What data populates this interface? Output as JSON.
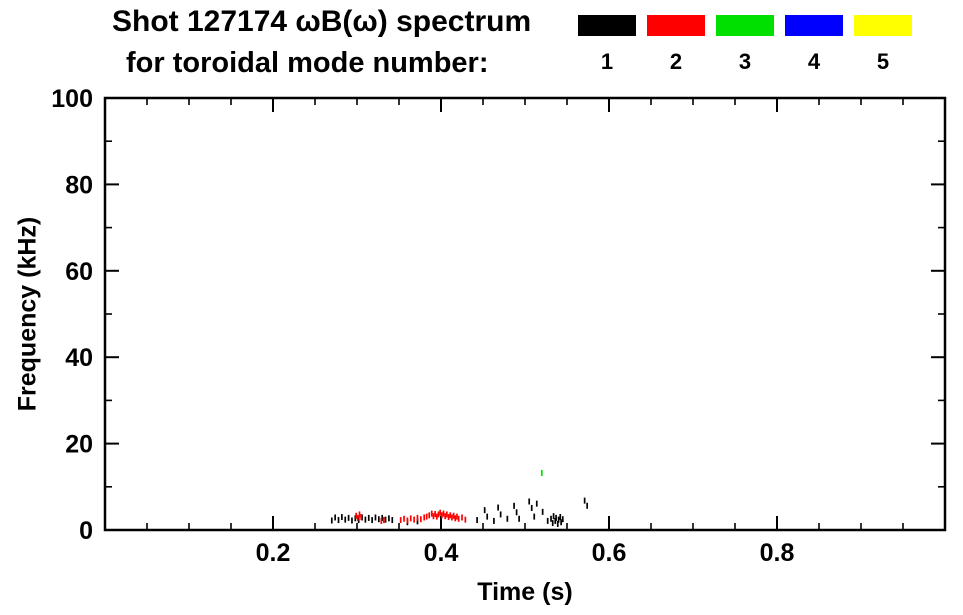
{
  "title_line1": "Shot 127174 ωB(ω) spectrum",
  "title_line2": "for toroidal mode number:",
  "chart_data": {
    "type": "scatter",
    "title": "Shot 127174 ωB(ω) spectrum for toroidal mode number",
    "xlabel": "Time (s)",
    "ylabel": "Frequency (kHz)",
    "xlim": [
      0.0,
      1.0
    ],
    "ylim": [
      0,
      100
    ],
    "grid": false,
    "xticks": {
      "major": [
        0.2,
        0.4,
        0.6,
        0.8
      ],
      "major_labels": [
        "0.2",
        "0.4",
        "0.6",
        "0.8"
      ],
      "minor_step": 0.05
    },
    "yticks": {
      "major": [
        0,
        20,
        40,
        60,
        80,
        100
      ],
      "major_labels": [
        "0",
        "20",
        "40",
        "60",
        "80",
        "100"
      ],
      "minor_step": 10
    },
    "legend": {
      "position": "top-right",
      "items": [
        {
          "label": "1",
          "color": "#000000"
        },
        {
          "label": "2",
          "color": "#ff0000"
        },
        {
          "label": "3",
          "color": "#00e000"
        },
        {
          "label": "4",
          "color": "#0000ff"
        },
        {
          "label": "5",
          "color": "#ffff00"
        }
      ]
    },
    "series": [
      {
        "name": "toroidal mode n=1",
        "color": "#000000",
        "points": [
          [
            0.27,
            2.2
          ],
          [
            0.274,
            2.9
          ],
          [
            0.278,
            2.3
          ],
          [
            0.282,
            3.0
          ],
          [
            0.286,
            2.4
          ],
          [
            0.29,
            2.8
          ],
          [
            0.294,
            2.2
          ],
          [
            0.298,
            2.7
          ],
          [
            0.302,
            2.3
          ],
          [
            0.306,
            2.9
          ],
          [
            0.31,
            2.4
          ],
          [
            0.314,
            2.8
          ],
          [
            0.318,
            2.3
          ],
          [
            0.322,
            2.9
          ],
          [
            0.326,
            2.5
          ],
          [
            0.33,
            2.8
          ],
          [
            0.334,
            2.4
          ],
          [
            0.338,
            2.7
          ],
          [
            0.342,
            2.3
          ],
          [
            0.36,
            1.8
          ],
          [
            0.372,
            2.0
          ],
          [
            0.443,
            2.3
          ],
          [
            0.452,
            4.6
          ],
          [
            0.455,
            3.1
          ],
          [
            0.463,
            2.1
          ],
          [
            0.468,
            5.2
          ],
          [
            0.471,
            3.6
          ],
          [
            0.479,
            2.6
          ],
          [
            0.487,
            5.6
          ],
          [
            0.49,
            4.1
          ],
          [
            0.493,
            2.6
          ],
          [
            0.505,
            6.6
          ],
          [
            0.508,
            5.1
          ],
          [
            0.511,
            3.1
          ],
          [
            0.514,
            6.1
          ],
          [
            0.521,
            4.2
          ],
          [
            0.527,
            2.1
          ],
          [
            0.531,
            2.6
          ],
          [
            0.533,
            1.6
          ],
          [
            0.534,
            3.2
          ],
          [
            0.536,
            2.1
          ],
          [
            0.537,
            2.8
          ],
          [
            0.539,
            1.4
          ],
          [
            0.54,
            2.4
          ],
          [
            0.542,
            3.0
          ],
          [
            0.543,
            1.8
          ],
          [
            0.545,
            2.5
          ],
          [
            0.571,
            6.8
          ],
          [
            0.574,
            5.6
          ]
        ]
      },
      {
        "name": "toroidal mode n=2",
        "color": "#ff0000",
        "points": [
          [
            0.299,
            3.3
          ],
          [
            0.301,
            2.8
          ],
          [
            0.303,
            3.6
          ],
          [
            0.305,
            3.0
          ],
          [
            0.329,
            2.1
          ],
          [
            0.332,
            2.3
          ],
          [
            0.352,
            2.3
          ],
          [
            0.356,
            2.6
          ],
          [
            0.36,
            2.2
          ],
          [
            0.364,
            2.7
          ],
          [
            0.368,
            2.4
          ],
          [
            0.372,
            2.8
          ],
          [
            0.376,
            2.5
          ],
          [
            0.38,
            2.9
          ],
          [
            0.383,
            3.1
          ],
          [
            0.386,
            3.4
          ],
          [
            0.389,
            3.8
          ],
          [
            0.391,
            3.2
          ],
          [
            0.393,
            3.7
          ],
          [
            0.395,
            3.1
          ],
          [
            0.397,
            3.6
          ],
          [
            0.399,
            4.0
          ],
          [
            0.401,
            3.4
          ],
          [
            0.403,
            3.8
          ],
          [
            0.405,
            3.2
          ],
          [
            0.407,
            3.6
          ],
          [
            0.409,
            3.0
          ],
          [
            0.411,
            3.4
          ],
          [
            0.413,
            2.9
          ],
          [
            0.415,
            3.3
          ],
          [
            0.417,
            2.7
          ],
          [
            0.419,
            3.1
          ],
          [
            0.421,
            2.6
          ],
          [
            0.425,
            2.9
          ],
          [
            0.429,
            2.4
          ]
        ]
      },
      {
        "name": "toroidal mode n=3",
        "color": "#00e000",
        "points": [
          [
            0.52,
            13.2
          ]
        ]
      },
      {
        "name": "toroidal mode n=4",
        "color": "#0000ff",
        "points": []
      },
      {
        "name": "toroidal mode n=5",
        "color": "#ffff00",
        "points": []
      }
    ]
  }
}
